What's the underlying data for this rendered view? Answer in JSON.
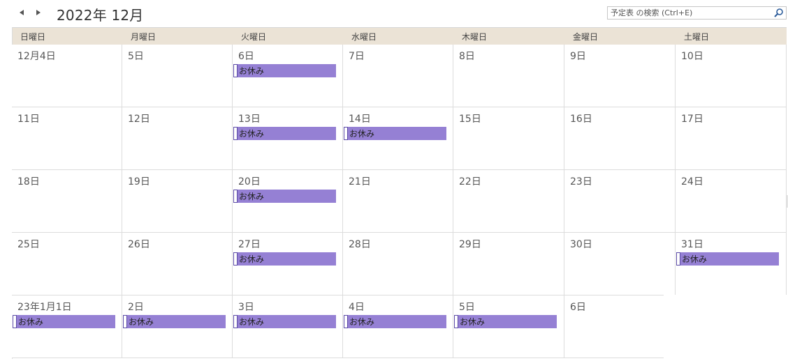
{
  "header": {
    "month_title": "2022年 12月",
    "prev_icon": "triangle-left-icon",
    "next_icon": "triangle-right-icon"
  },
  "search": {
    "placeholder": "予定表 の検索 (Ctrl+E)",
    "icon": "magnifier-icon"
  },
  "weekdays": [
    "日曜日",
    "月曜日",
    "火曜日",
    "水曜日",
    "木曜日",
    "金曜日",
    "土曜日"
  ],
  "weeks": [
    [
      {
        "label": "12月4日",
        "event": null
      },
      {
        "label": "5日",
        "event": null
      },
      {
        "label": "6日",
        "event": "お休み"
      },
      {
        "label": "7日",
        "event": null
      },
      {
        "label": "8日",
        "event": null
      },
      {
        "label": "9日",
        "event": null
      },
      {
        "label": "10日",
        "event": null
      }
    ],
    [
      {
        "label": "11日",
        "event": null
      },
      {
        "label": "12日",
        "event": null
      },
      {
        "label": "13日",
        "event": "お休み"
      },
      {
        "label": "14日",
        "event": "お休み"
      },
      {
        "label": "15日",
        "event": null
      },
      {
        "label": "16日",
        "event": null
      },
      {
        "label": "17日",
        "event": null
      }
    ],
    [
      {
        "label": "18日",
        "event": null
      },
      {
        "label": "19日",
        "event": null
      },
      {
        "label": "20日",
        "event": "お休み"
      },
      {
        "label": "21日",
        "event": null
      },
      {
        "label": "22日",
        "event": null
      },
      {
        "label": "23日",
        "event": null
      },
      {
        "label": "24日",
        "event": null
      }
    ],
    [
      {
        "label": "25日",
        "event": null
      },
      {
        "label": "26日",
        "event": null
      },
      {
        "label": "27日",
        "event": "お休み"
      },
      {
        "label": "28日",
        "event": null
      },
      {
        "label": "29日",
        "event": null
      },
      {
        "label": "30日",
        "event": null
      },
      {
        "label": "31日",
        "event": "お休み"
      }
    ],
    [
      {
        "label": "23年1月1日",
        "event": "お休み"
      },
      {
        "label": "2日",
        "event": "お休み"
      },
      {
        "label": "3日",
        "event": "お休み"
      },
      {
        "label": "4日",
        "event": "お休み"
      },
      {
        "label": "5日",
        "event": "お休み"
      },
      {
        "label": "6日",
        "event": null
      },
      {
        "label": "",
        "event": null
      }
    ]
  ],
  "colors": {
    "event_fill": "#9580d4",
    "header_band": "#ebe3d6",
    "grid_line": "#dcdcdc"
  }
}
